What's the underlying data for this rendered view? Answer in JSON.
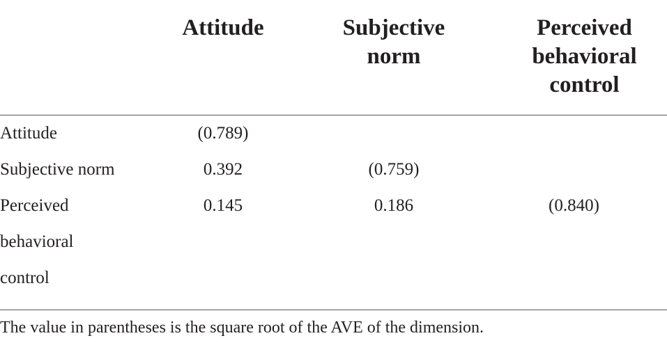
{
  "table": {
    "columns": [
      "Attitude",
      "Subjective norm",
      "Perceived behavioral control"
    ],
    "rows": [
      {
        "label": "Attitude",
        "cells": [
          "(0.789)",
          null,
          null
        ]
      },
      {
        "label": "Subjective norm",
        "cells": [
          0.392,
          "(0.759)",
          null
        ]
      },
      {
        "label": "Perceived behavioral control",
        "cells": [
          0.145,
          0.186,
          "(0.840)"
        ]
      }
    ]
  },
  "note": "The value in parentheses is the square root of the AVE of the dimension."
}
